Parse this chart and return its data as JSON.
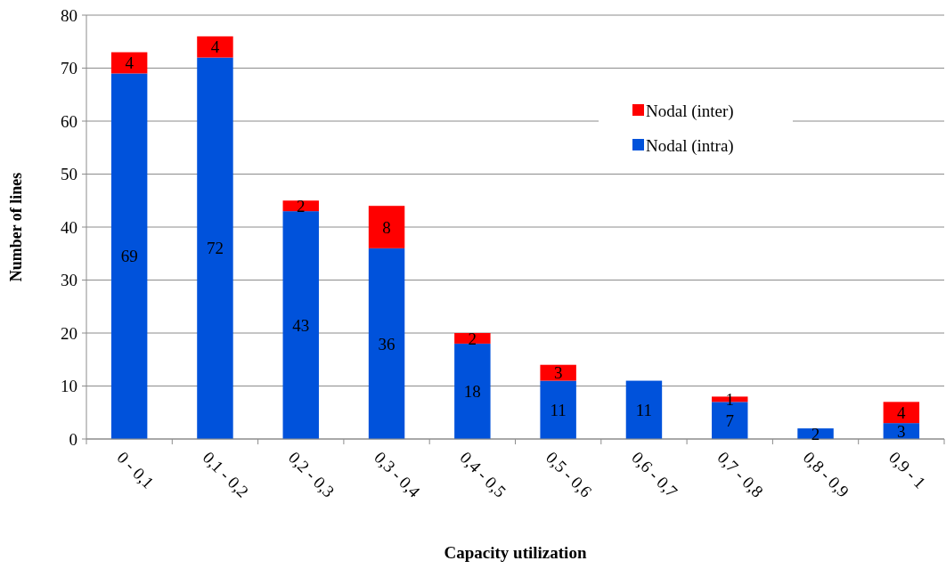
{
  "chart_data": {
    "type": "bar",
    "xlabel": "Capacity utilization",
    "ylabel": "Number of lines",
    "categories": [
      "0 - 0,1",
      "0,1 - 0,2",
      "0,2 - 0,3",
      "0,3 - 0,4",
      "0,4 - 0,5",
      "0,5 - 0,6",
      "0,6 - 0,7",
      "0,7 - 0,8",
      "0,8 - 0,9",
      "0,9 - 1"
    ],
    "series": [
      {
        "name": "Nodal (intra)",
        "color": "#0052db",
        "values": [
          69,
          72,
          43,
          36,
          18,
          11,
          11,
          7,
          2,
          3
        ]
      },
      {
        "name": "Nodal (inter)",
        "color": "#ff0000",
        "values": [
          4,
          4,
          2,
          8,
          2,
          3,
          null,
          1,
          null,
          4
        ]
      }
    ],
    "stacked": true,
    "data_labels": true,
    "ylim": [
      0,
      80
    ],
    "yticks": [
      0,
      10,
      20,
      30,
      40,
      50,
      60,
      70,
      80
    ],
    "grid": "y",
    "legend": "top right"
  }
}
